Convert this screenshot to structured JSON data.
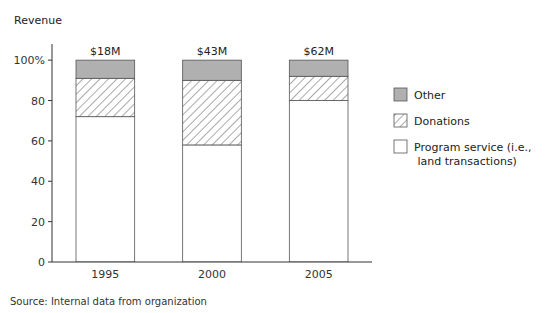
{
  "chart_data": {
    "type": "bar",
    "stacked": true,
    "categories": [
      "1995",
      "2000",
      "2005"
    ],
    "series": [
      {
        "name": "Program service (i.e.,\n  land transactions)",
        "color": "#ffffff",
        "values": [
          72,
          58,
          80
        ]
      },
      {
        "name": "Donations",
        "color": "#ffffff",
        "values": [
          19,
          32,
          12
        ]
      },
      {
        "name": "Other",
        "color": "#b0b0b0",
        "values": [
          9,
          10,
          8
        ]
      }
    ],
    "annotations": [
      {
        "x": "1995",
        "text": "$18M"
      },
      {
        "x": "2000",
        "text": "$43M"
      },
      {
        "x": "2005",
        "text": "$62M"
      }
    ],
    "ylabel": "Revenue",
    "source": "Source: Internal data from organization",
    "ylim": [
      0,
      108
    ],
    "yticks": [
      0,
      20,
      40,
      60,
      80,
      {
        "value": 100,
        "label": "100%"
      }
    ],
    "grid": false,
    "legend": "right"
  }
}
